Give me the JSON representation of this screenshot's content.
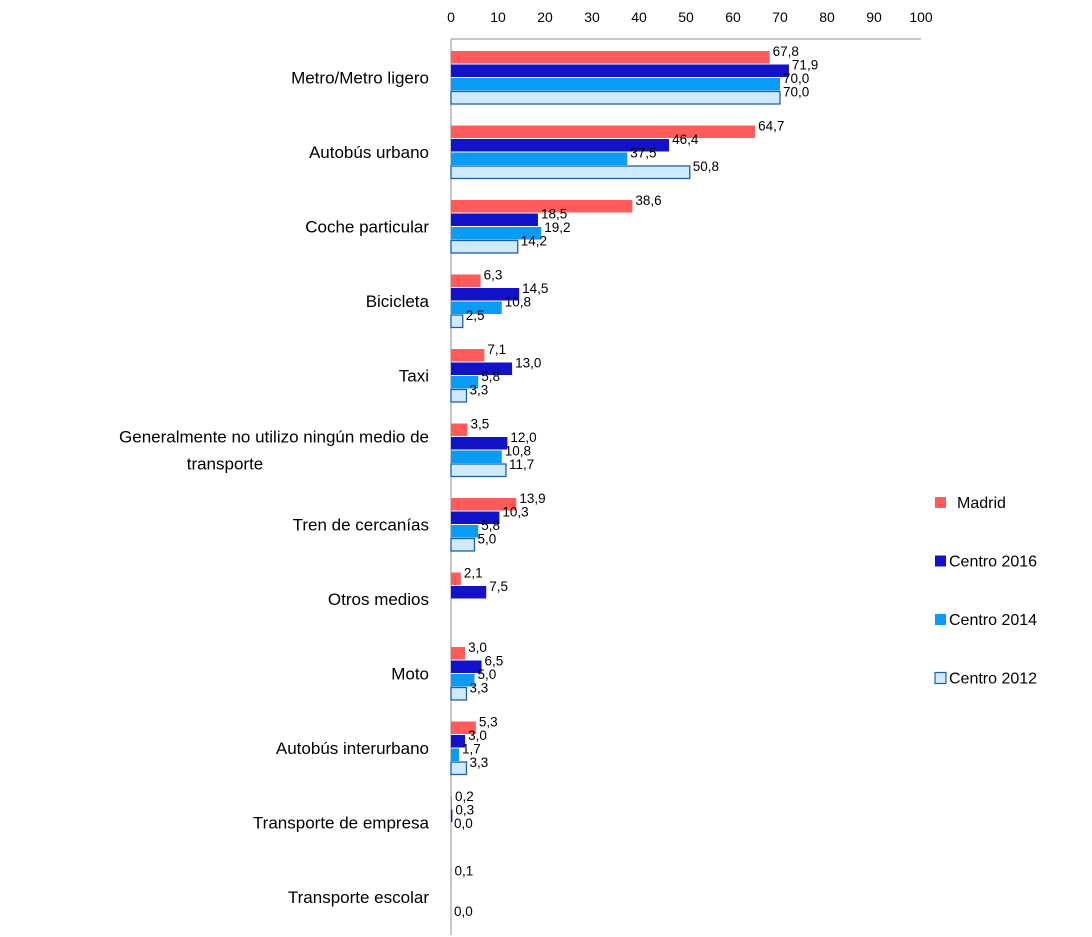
{
  "chart_data": {
    "type": "bar",
    "orientation": "horizontal",
    "xlim": [
      0,
      100
    ],
    "x_ticks": [
      "0",
      "10",
      "20",
      "30",
      "40",
      "50",
      "60",
      "70",
      "80",
      "90",
      "100"
    ],
    "x_axis_position": "top",
    "grid": false,
    "legend_position": "right",
    "categories": [
      [
        "Metro/Metro ligero"
      ],
      [
        "Autobús urbano"
      ],
      [
        "Coche particular"
      ],
      [
        "Bicicleta"
      ],
      [
        "Taxi"
      ],
      [
        "Generalmente no utilizo ningún medio de",
        "transporte"
      ],
      [
        "Tren de cercanías"
      ],
      [
        "Otros medios"
      ],
      [
        "Moto"
      ],
      [
        "Autobús interurbano"
      ],
      [
        "Transporte de empresa"
      ],
      [
        "Transporte escolar"
      ]
    ],
    "series": [
      {
        "name": "Madrid",
        "color": "#ff5b5b",
        "values": [
          67.8,
          64.7,
          38.6,
          6.3,
          7.1,
          3.5,
          13.9,
          2.1,
          3.0,
          5.3,
          0.2,
          0.1
        ],
        "labels": [
          "67,8",
          "64,7",
          "38,6",
          "6,3",
          "7,1",
          "3,5",
          "13,9",
          "2,1",
          "3,0",
          "5,3",
          "0,2",
          "0,1"
        ]
      },
      {
        "name": "Centro 2016",
        "color": "#1212c8",
        "values": [
          71.9,
          46.4,
          18.5,
          14.5,
          13.0,
          12.0,
          10.3,
          7.5,
          6.5,
          3.0,
          0.3,
          null
        ],
        "labels": [
          "71,9",
          "46,4",
          "18,5",
          "14,5",
          "13,0",
          "12,0",
          "10,3",
          "7,5",
          "6,5",
          "3,0",
          "0,3",
          null
        ]
      },
      {
        "name": "Centro 2014",
        "color": "#0a9bf5",
        "values": [
          70.0,
          37.5,
          19.2,
          10.8,
          5.8,
          10.8,
          5.8,
          null,
          5.0,
          1.7,
          0.0,
          null
        ],
        "labels": [
          "70,0",
          "37,5",
          "19,2",
          "10,8",
          "5,8",
          "10,8",
          "5,8",
          null,
          "5,0",
          "1,7",
          "0,0",
          null
        ]
      },
      {
        "name": "Centro 2012",
        "color": "#cfeaff",
        "stroke": "#1e5fa8",
        "values": [
          70.0,
          50.8,
          14.2,
          2.5,
          3.3,
          11.7,
          5.0,
          null,
          3.3,
          3.3,
          null,
          0.0
        ],
        "labels": [
          "70,0",
          "50,8",
          "14,2",
          "2,5",
          "3,3",
          "11,7",
          "5,0",
          null,
          "3,3",
          "3,3",
          null,
          "0,0"
        ]
      }
    ]
  }
}
